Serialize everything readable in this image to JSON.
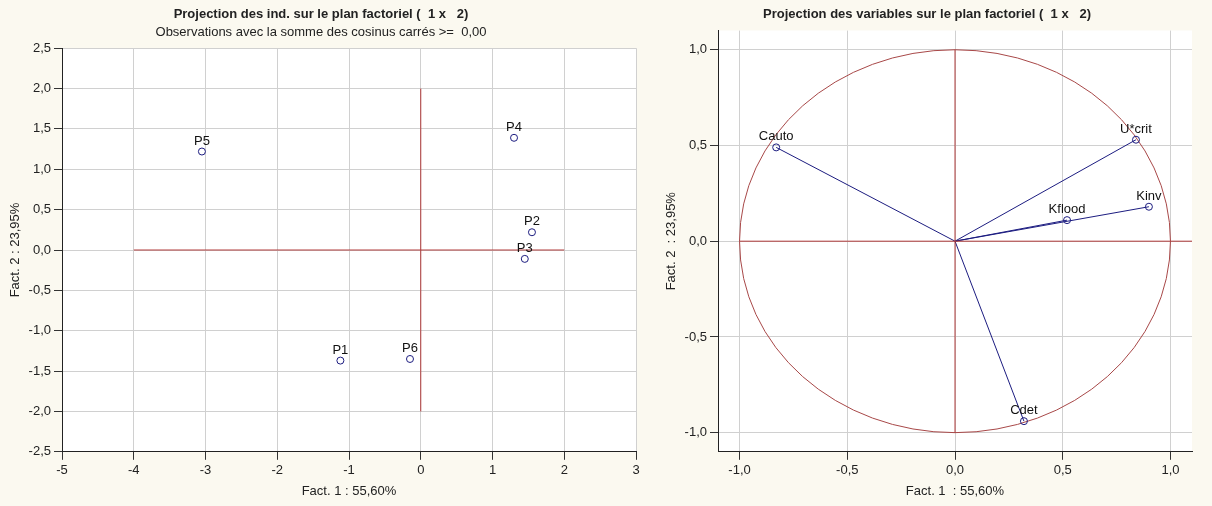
{
  "chart_data": [
    {
      "type": "scatter",
      "title": "Projection des ind. sur le plan factoriel (  1 x   2)",
      "subtitle": "Observations avec la somme des cosinus carrés >=  0,00",
      "xlabel": "Fact. 1 : 55,60%",
      "ylabel": "Fact. 2 : 23,95%",
      "xlim": [
        -5,
        3
      ],
      "xticks": [
        -5,
        -4,
        -3,
        -2,
        -1,
        {
          "value": 0,
          "label": "0"
        },
        1,
        2,
        3
      ],
      "ylim": [
        -2.5,
        2.5
      ],
      "yticks": [
        {
          "value": -2.5,
          "label": "-2,5"
        },
        {
          "value": -2,
          "label": "-2,0"
        },
        {
          "value": -1.5,
          "label": "-1,5"
        },
        {
          "value": -1,
          "label": "-1,0"
        },
        {
          "value": -0.5,
          "label": "-0,5"
        },
        {
          "value": 0,
          "label": "0,0"
        },
        {
          "value": 0.5,
          "label": "0,5"
        },
        {
          "value": 1,
          "label": "1,0"
        },
        {
          "value": 1.5,
          "label": "1,5"
        },
        {
          "value": 2,
          "label": "2,0"
        },
        {
          "value": 2.5,
          "label": "2,5"
        }
      ],
      "grid": true,
      "legend": false,
      "marker": "circle",
      "series": [
        {
          "type": "line",
          "marker": "none",
          "color": "#b03a3a",
          "x": [
            -4,
            2
          ],
          "values": [
            0,
            0
          ]
        },
        {
          "type": "line",
          "marker": "none",
          "color": "#b03a3a",
          "x": [
            0,
            0
          ],
          "values": [
            -2,
            2
          ]
        },
        {
          "name": "P1",
          "color": "#1c1c80",
          "x": [
            -1.12
          ],
          "values": [
            -1.37
          ]
        },
        {
          "name": "P2",
          "color": "#1c1c80",
          "x": [
            1.55
          ],
          "values": [
            0.22
          ]
        },
        {
          "name": "P3",
          "color": "#1c1c80",
          "x": [
            1.45
          ],
          "values": [
            -0.11
          ]
        },
        {
          "name": "P4",
          "color": "#1c1c80",
          "x": [
            1.3
          ],
          "values": [
            1.39
          ]
        },
        {
          "name": "P5",
          "color": "#1c1c80",
          "x": [
            -3.05
          ],
          "values": [
            1.22
          ]
        },
        {
          "name": "P6",
          "color": "#1c1c80",
          "x": [
            -0.15
          ],
          "values": [
            -1.35
          ]
        }
      ]
    },
    {
      "type": "scatter",
      "title": "Projection des variables sur le plan factoriel (  1 x   2)",
      "xlabel": "Fact. 1  : 55,60%",
      "ylabel": "Fact. 2  : 23,95%",
      "xlim": [
        -1.1,
        1.1
      ],
      "xticks": [
        {
          "value": -1,
          "label": "-1,0"
        },
        {
          "value": -0.5,
          "label": "-0,5"
        },
        {
          "value": 0,
          "label": "0,0"
        },
        {
          "value": 0.5,
          "label": "0,5"
        },
        {
          "value": 1,
          "label": "1,0"
        }
      ],
      "ylim": [
        -1.1,
        1.1
      ],
      "yticks": [
        {
          "value": -1,
          "label": "-1,0"
        },
        {
          "value": -0.5,
          "label": "-0,5"
        },
        {
          "value": 0,
          "label": "0,0"
        },
        {
          "value": 0.5,
          "label": "0,5"
        },
        {
          "value": 1,
          "label": "1,0"
        }
      ],
      "grid": true,
      "legend": false,
      "marker": "circle",
      "series": [
        {
          "type": "line",
          "marker": "none",
          "color": "#b03a3a",
          "x": [
            -1,
            1.1
          ],
          "values": [
            0,
            0
          ]
        },
        {
          "type": "line",
          "marker": "none",
          "color": "#b03a3a",
          "x": [
            0,
            0
          ],
          "values": [
            -1,
            1
          ]
        },
        {
          "type": "line",
          "marker": "none",
          "color": "#1c1c80",
          "x": [
            0,
            -0.83
          ],
          "values": [
            0,
            0.49
          ]
        },
        {
          "type": "line",
          "marker": "none",
          "color": "#1c1c80",
          "x": [
            0,
            0.84
          ],
          "values": [
            0,
            0.53
          ]
        },
        {
          "type": "line",
          "marker": "none",
          "color": "#1c1c80",
          "x": [
            0,
            0.9
          ],
          "values": [
            0,
            0.18
          ]
        },
        {
          "type": "line",
          "marker": "none",
          "color": "#1c1c80",
          "x": [
            0,
            0.52
          ],
          "values": [
            0,
            0.11
          ]
        },
        {
          "type": "line",
          "marker": "none",
          "color": "#1c1c80",
          "x": [
            0,
            0.32
          ],
          "values": [
            0,
            -0.94
          ]
        },
        {
          "name": "Cauto",
          "color": "#1c1c80",
          "x": [
            -0.83
          ],
          "values": [
            0.49
          ]
        },
        {
          "name": "U*crit",
          "color": "#1c1c80",
          "x": [
            0.84
          ],
          "values": [
            0.53
          ]
        },
        {
          "name": "Kinv",
          "color": "#1c1c80",
          "x": [
            0.9
          ],
          "values": [
            0.18
          ]
        },
        {
          "name": "Kflood",
          "color": "#1c1c80",
          "x": [
            0.52
          ],
          "values": [
            0.11
          ]
        },
        {
          "name": "Cdet",
          "color": "#1c1c80",
          "x": [
            0.32
          ],
          "values": [
            -0.94
          ]
        }
      ]
    }
  ]
}
